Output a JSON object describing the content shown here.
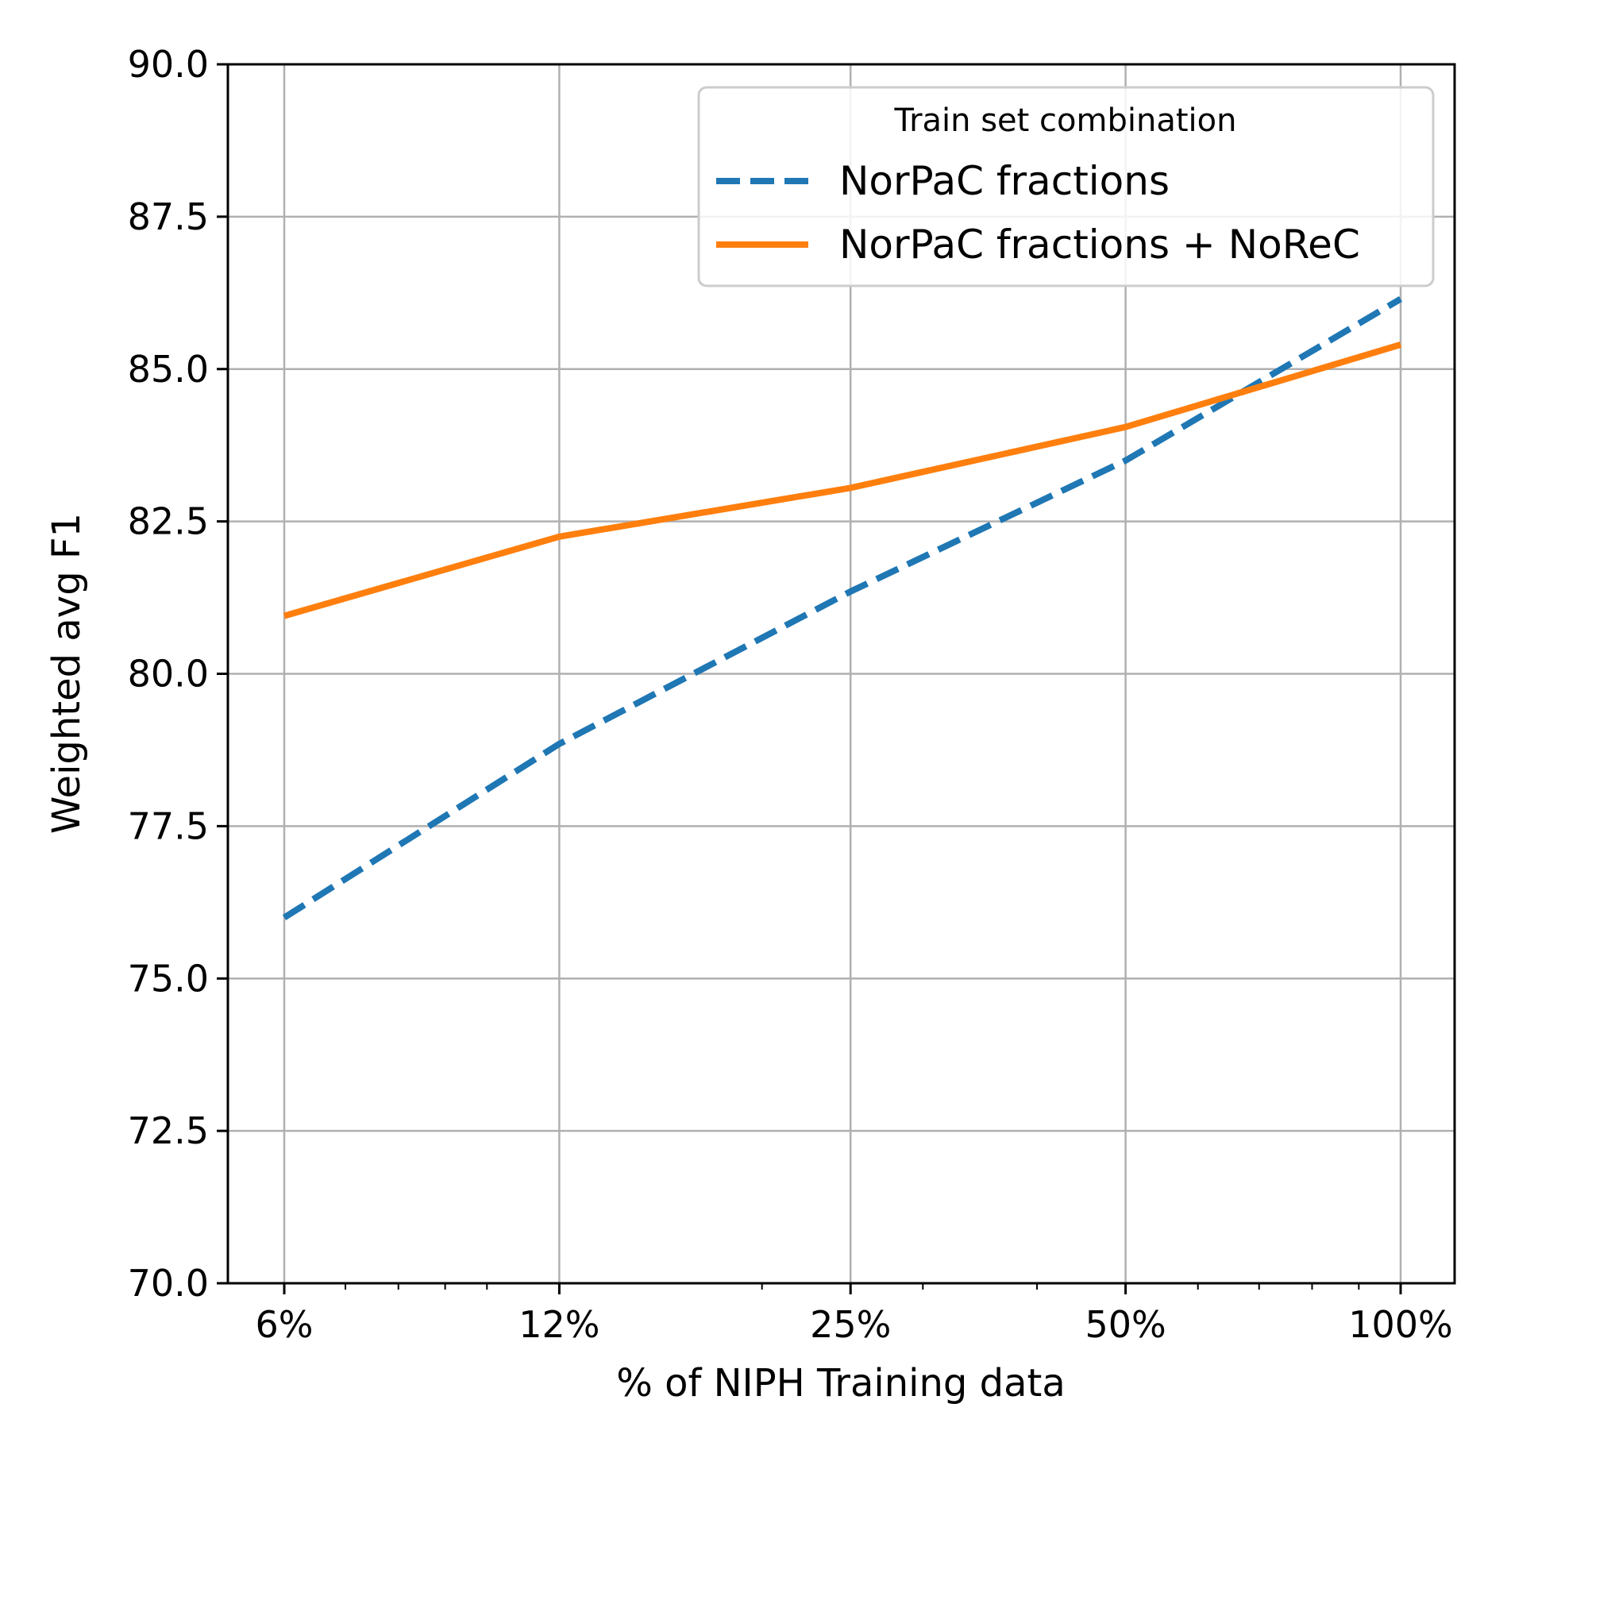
{
  "chart_data": {
    "type": "line",
    "xlabel": "% of NIPH Training data",
    "ylabel": "Weighted avg F1",
    "x_scale": "log",
    "x": [
      6,
      12,
      25,
      50,
      100
    ],
    "x_tick_labels": [
      "6%",
      "12%",
      "25%",
      "50%",
      "100%"
    ],
    "ylim": [
      70.0,
      90.0
    ],
    "y_ticks": [
      70.0,
      72.5,
      75.0,
      77.5,
      80.0,
      82.5,
      85.0,
      87.5,
      90.0
    ],
    "y_tick_labels": [
      "70.0",
      "72.5",
      "75.0",
      "77.5",
      "80.0",
      "82.5",
      "85.0",
      "87.5",
      "90.0"
    ],
    "grid": true,
    "legend": {
      "title": "Train set combination",
      "placement": "top-right"
    },
    "series": [
      {
        "name": "NorPaC fractions",
        "values": [
          76.0,
          78.85,
          81.35,
          83.5,
          86.15
        ],
        "color": "#1f77b4",
        "style": "dashed"
      },
      {
        "name": "NorPaC fractions + NoReC",
        "values": [
          80.95,
          82.25,
          83.05,
          84.05,
          85.4
        ],
        "color": "#ff7f0e",
        "style": "solid"
      }
    ]
  }
}
